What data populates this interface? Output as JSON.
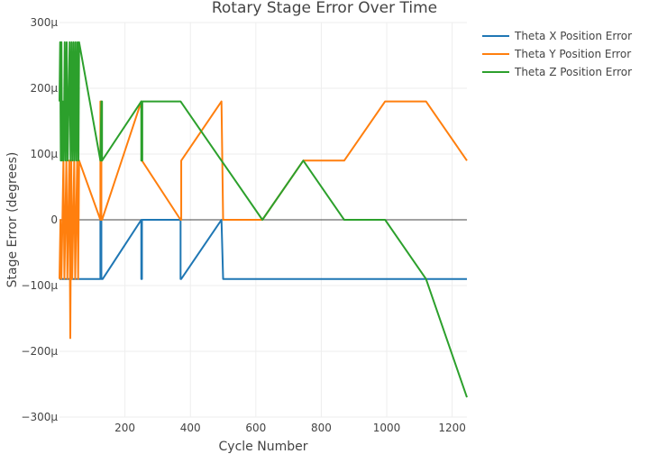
{
  "chart_data": {
    "type": "line",
    "title": "Rotary Stage Error Over Time",
    "xlabel": "Cycle Number",
    "ylabel": "Stage Error (degrees)",
    "xlim": [
      0,
      1245
    ],
    "ylim": [
      -0.0003,
      0.0003
    ],
    "xticks": [
      200,
      400,
      600,
      800,
      1000,
      1200
    ],
    "xtick_labels": [
      "200",
      "400",
      "600",
      "800",
      "1000",
      "1200"
    ],
    "yticks": [
      0.0003,
      0.0002,
      0.0001,
      0,
      -0.0001,
      -0.0002,
      -0.0003
    ],
    "ytick_labels": [
      "300μ",
      "200μ",
      "100μ",
      "0",
      "−100μ",
      "−200μ",
      "−300μ"
    ],
    "grid": true,
    "legend_position": "top-right",
    "series": [
      {
        "name": "Theta X Position Error",
        "color": "#1f77b4",
        "x": [
          0,
          125,
          125,
          128,
          128,
          132,
          250,
          250,
          252,
          252,
          370,
          370,
          372,
          495,
          500,
          1245
        ],
        "y": [
          -9e-05,
          -9e-05,
          0,
          0,
          -9e-05,
          -9e-05,
          0,
          -9e-05,
          -9e-05,
          0,
          0,
          -9e-05,
          -9e-05,
          0,
          -9e-05,
          -9e-05
        ]
      },
      {
        "name": "Theta Y Position Error",
        "color": "#ff7f0e",
        "x": [
          0,
          3,
          6,
          9,
          12,
          15,
          18,
          21,
          24,
          27,
          30,
          33,
          36,
          39,
          42,
          45,
          48,
          51,
          54,
          57,
          60,
          125,
          125,
          128,
          128,
          130,
          250,
          250,
          252,
          252,
          370,
          372,
          372,
          495,
          495,
          500,
          620,
          745,
          870,
          995,
          1120,
          1245
        ],
        "y": [
          -9e-05,
          0,
          -9e-05,
          0,
          9e-05,
          -9e-05,
          0,
          9e-05,
          -9e-05,
          0,
          9e-05,
          -0.00018,
          9e-05,
          -9e-05,
          0,
          9e-05,
          -9e-05,
          0,
          9e-05,
          -9e-05,
          9e-05,
          0,
          0.00018,
          0.00018,
          0,
          0,
          0.00018,
          0.00018,
          9e-05,
          9e-05,
          0,
          0,
          9e-05,
          0.00018,
          0.00018,
          0,
          0,
          9e-05,
          9e-05,
          0.00018,
          0.00018,
          9e-05
        ]
      },
      {
        "name": "Theta Z Position Error",
        "color": "#2ca02c",
        "x": [
          0,
          2,
          4,
          6,
          8,
          10,
          13,
          16,
          19,
          22,
          25,
          28,
          31,
          34,
          37,
          40,
          43,
          46,
          49,
          52,
          55,
          58,
          60,
          125,
          128,
          128,
          130,
          130,
          250,
          250,
          253,
          253,
          370,
          495,
          620,
          745,
          870,
          995,
          1120,
          1245
        ],
        "y": [
          0.00018,
          0.00027,
          9e-05,
          0.00027,
          9e-05,
          0.00018,
          9e-05,
          0.00027,
          9e-05,
          0.00027,
          9e-05,
          0.00018,
          0.00027,
          9e-05,
          0.00027,
          9e-05,
          0.00027,
          9e-05,
          0.00027,
          9e-05,
          0.00027,
          9e-05,
          0.00027,
          9e-05,
          0.00018,
          9e-05,
          0.00018,
          9e-05,
          0.00018,
          9e-05,
          9e-05,
          0.00018,
          0.00018,
          9e-05,
          0,
          9e-05,
          0,
          0,
          -9e-05,
          -0.00027
        ]
      }
    ]
  }
}
